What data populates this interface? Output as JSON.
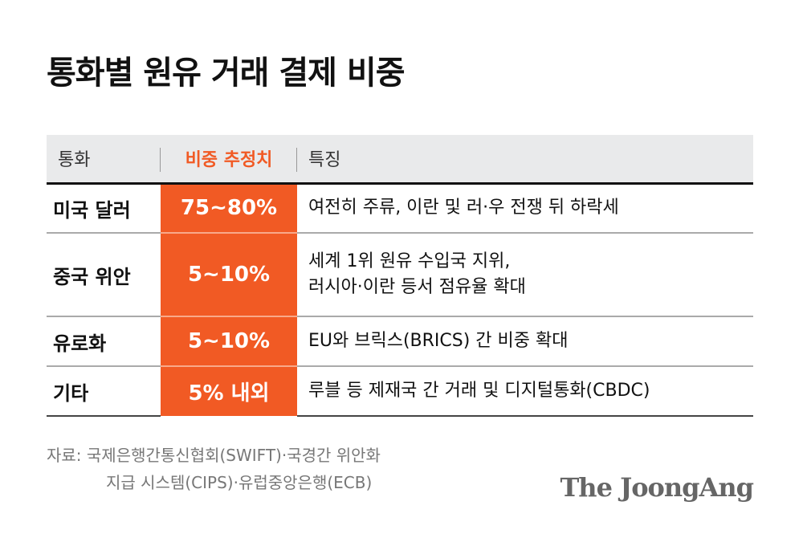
{
  "title": "통화별 원유 거래 결제 비중",
  "table": {
    "headers": [
      "통화",
      "비중 추정치",
      "특징"
    ],
    "rows": [
      {
        "currency": "미국 달러",
        "share": "75~80%",
        "feature_lines": [
          "여전히 주류, 이란 및 러·우 전쟁 뒤 하락세"
        ]
      },
      {
        "currency": "중국 위안",
        "share": "5~10%",
        "feature_lines": [
          "세계 1위 원유 수입국 지위,",
          "러시아·이란 등서 점유율 확대"
        ]
      },
      {
        "currency": "유로화",
        "share": "5~10%",
        "feature_lines": [
          "EU와 브릭스(BRICS) 간 비중 확대"
        ]
      },
      {
        "currency": "기타",
        "share": "5% 내외",
        "feature_lines": [
          "루블 등 제재국 간 거래 및 디지털통화(CBDC)"
        ]
      }
    ]
  },
  "source": {
    "line1": "자료: 국제은행간통신협회(SWIFT)·국경간 위안화",
    "line2": "지급 시스템(CIPS)·유럽중앙은행(ECB)"
  },
  "logo": "The JoongAng",
  "colors": {
    "accent": "#f15a24",
    "header_bg": "#e9eaeb"
  }
}
